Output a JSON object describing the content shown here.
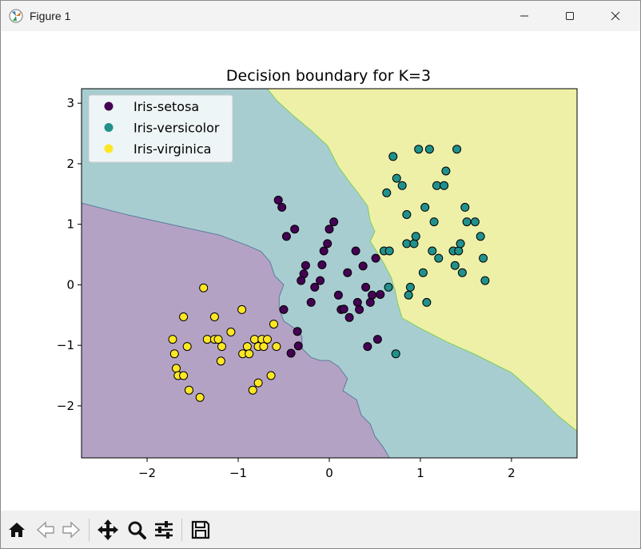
{
  "window": {
    "title": "Figure 1"
  },
  "toolbar": {
    "buttons": [
      "home-icon",
      "back-icon",
      "forward-icon",
      "pan-icon",
      "zoom-icon",
      "configure-subplots-icon",
      "save-icon"
    ]
  },
  "chart_data": {
    "type": "scatter",
    "title": "Decision boundary for K=3",
    "xlabel": "",
    "ylabel": "",
    "xlim": [
      -2.72,
      2.72
    ],
    "ylim": [
      -2.86,
      3.24
    ],
    "xticks": [
      -2,
      -1,
      0,
      1,
      2
    ],
    "xtick_labels": [
      "−2",
      "−1",
      "0",
      "1",
      "2"
    ],
    "yticks": [
      -2,
      -1,
      0,
      1,
      2,
      3
    ],
    "ytick_labels": [
      "−2",
      "−1",
      "0",
      "1",
      "2",
      "3"
    ],
    "grid": false,
    "legend_position": "top-left",
    "background_regions": [
      {
        "class": "Iris-setosa",
        "color": "#b4a2c4",
        "boundary": [
          [
            -2.72,
            1.35
          ],
          [
            -2.2,
            1.15
          ],
          [
            -1.6,
            0.95
          ],
          [
            -1.2,
            0.82
          ],
          [
            -0.9,
            0.65
          ],
          [
            -0.75,
            0.55
          ],
          [
            -0.65,
            0.38
          ],
          [
            -0.6,
            0.15
          ],
          [
            -0.5,
            0.0
          ],
          [
            -0.55,
            -0.2
          ],
          [
            -0.55,
            -0.4
          ],
          [
            -0.5,
            -0.6
          ],
          [
            -0.4,
            -0.7
          ],
          [
            -0.3,
            -0.85
          ],
          [
            -0.3,
            -1.05
          ],
          [
            -0.2,
            -1.2
          ],
          [
            -0.1,
            -1.25
          ],
          [
            0.0,
            -1.25
          ],
          [
            0.1,
            -1.35
          ],
          [
            0.2,
            -1.55
          ],
          [
            0.15,
            -1.75
          ],
          [
            0.3,
            -1.9
          ],
          [
            0.35,
            -2.15
          ],
          [
            0.45,
            -2.3
          ],
          [
            0.5,
            -2.5
          ],
          [
            0.6,
            -2.7
          ],
          [
            0.66,
            -2.86
          ],
          [
            -2.72,
            -2.86
          ]
        ]
      },
      {
        "class": "Iris-virginica",
        "color": "#eff0a8",
        "boundary": [
          [
            -0.68,
            3.24
          ],
          [
            -0.58,
            3.05
          ],
          [
            -0.4,
            2.8
          ],
          [
            -0.2,
            2.55
          ],
          [
            -0.02,
            2.3
          ],
          [
            0.1,
            1.95
          ],
          [
            0.22,
            1.7
          ],
          [
            0.3,
            1.55
          ],
          [
            0.42,
            1.3
          ],
          [
            0.45,
            1.05
          ],
          [
            0.5,
            0.88
          ],
          [
            0.45,
            0.72
          ],
          [
            0.52,
            0.55
          ],
          [
            0.6,
            0.35
          ],
          [
            0.68,
            0.12
          ],
          [
            0.72,
            -0.08
          ],
          [
            0.75,
            -0.3
          ],
          [
            0.8,
            -0.55
          ],
          [
            1.0,
            -0.72
          ],
          [
            1.3,
            -0.95
          ],
          [
            1.6,
            -1.15
          ],
          [
            2.0,
            -1.45
          ],
          [
            2.3,
            -1.85
          ],
          [
            2.5,
            -2.15
          ],
          [
            2.72,
            -2.42
          ],
          [
            2.72,
            3.24
          ]
        ]
      }
    ],
    "background_default": {
      "class": "Iris-versicolor",
      "color": "#a8cdd1"
    },
    "series": [
      {
        "name": "Iris-setosa",
        "color": "#440154",
        "points": [
          [
            -0.56,
            1.4
          ],
          [
            -0.52,
            1.28
          ],
          [
            -0.47,
            0.8
          ],
          [
            -0.38,
            0.92
          ],
          [
            -0.26,
            0.32
          ],
          [
            -0.28,
            0.18
          ],
          [
            -0.31,
            0.07
          ],
          [
            -0.16,
            -0.04
          ],
          [
            -0.2,
            -0.29
          ],
          [
            -0.1,
            0.07
          ],
          [
            -0.08,
            0.33
          ],
          [
            -0.06,
            0.56
          ],
          [
            -0.02,
            0.68
          ],
          [
            0.0,
            0.92
          ],
          [
            0.05,
            1.04
          ],
          [
            0.1,
            -0.17
          ],
          [
            0.13,
            -0.41
          ],
          [
            0.16,
            -0.4
          ],
          [
            0.2,
            0.2
          ],
          [
            0.22,
            -0.54
          ],
          [
            0.29,
            0.56
          ],
          [
            0.31,
            -0.29
          ],
          [
            0.33,
            -0.41
          ],
          [
            0.37,
            0.31
          ],
          [
            0.4,
            -0.04
          ],
          [
            0.42,
            -1.02
          ],
          [
            0.45,
            -0.29
          ],
          [
            0.47,
            -0.17
          ],
          [
            0.51,
            0.44
          ],
          [
            0.53,
            -0.9
          ],
          [
            0.56,
            -0.16
          ],
          [
            -0.5,
            -0.41
          ],
          [
            -0.35,
            -0.77
          ],
          [
            -0.34,
            -1.01
          ],
          [
            -0.42,
            -1.13
          ]
        ]
      },
      {
        "class_note": "",
        "name": "Iris-versicolor",
        "color": "#21918c",
        "points": [
          [
            0.63,
            1.52
          ],
          [
            0.65,
            -0.04
          ],
          [
            0.6,
            0.56
          ],
          [
            0.66,
            0.56
          ],
          [
            0.7,
            2.12
          ],
          [
            0.74,
            1.76
          ],
          [
            0.73,
            -1.14
          ],
          [
            0.8,
            1.64
          ],
          [
            0.85,
            1.16
          ],
          [
            0.85,
            0.68
          ],
          [
            0.87,
            -0.17
          ],
          [
            0.89,
            -0.04
          ],
          [
            0.93,
            0.68
          ],
          [
            0.95,
            0.8
          ],
          [
            0.98,
            2.24
          ],
          [
            1.03,
            0.2
          ],
          [
            1.05,
            1.28
          ],
          [
            1.07,
            -0.29
          ],
          [
            1.1,
            2.24
          ],
          [
            1.13,
            0.56
          ],
          [
            1.15,
            1.04
          ],
          [
            1.18,
            1.64
          ],
          [
            1.2,
            0.44
          ],
          [
            1.26,
            1.64
          ],
          [
            1.28,
            1.88
          ],
          [
            1.36,
            0.56
          ],
          [
            1.38,
            0.32
          ],
          [
            1.4,
            2.24
          ],
          [
            1.42,
            0.56
          ],
          [
            1.44,
            0.68
          ],
          [
            1.46,
            0.2
          ],
          [
            1.49,
            1.28
          ],
          [
            1.51,
            1.04
          ],
          [
            1.6,
            1.04
          ],
          [
            1.66,
            0.8
          ],
          [
            1.69,
            0.44
          ],
          [
            1.71,
            0.07
          ]
        ]
      },
      {
        "name": "Iris-virginica",
        "color": "#fde725",
        "points": [
          [
            -1.72,
            -0.9
          ],
          [
            -1.7,
            -1.14
          ],
          [
            -1.68,
            -1.38
          ],
          [
            -1.66,
            -1.5
          ],
          [
            -1.6,
            -1.5
          ],
          [
            -1.6,
            -0.53
          ],
          [
            -1.56,
            -1.02
          ],
          [
            -1.54,
            -1.74
          ],
          [
            -1.42,
            -1.86
          ],
          [
            -1.38,
            -0.05
          ],
          [
            -1.34,
            -0.9
          ],
          [
            -1.26,
            -0.53
          ],
          [
            -1.26,
            -0.9
          ],
          [
            -1.22,
            -0.9
          ],
          [
            -1.19,
            -1.26
          ],
          [
            -1.18,
            -1.02
          ],
          [
            -1.08,
            -0.78
          ],
          [
            -0.96,
            -0.41
          ],
          [
            -0.95,
            -1.14
          ],
          [
            -0.9,
            -1.02
          ],
          [
            -0.88,
            -1.14
          ],
          [
            -0.84,
            -1.74
          ],
          [
            -0.82,
            -0.9
          ],
          [
            -0.78,
            -1.62
          ],
          [
            -0.78,
            -1.02
          ],
          [
            -0.74,
            -0.9
          ],
          [
            -0.72,
            -1.02
          ],
          [
            -0.68,
            -0.9
          ],
          [
            -0.64,
            -1.5
          ],
          [
            -0.61,
            -0.65
          ],
          [
            -0.58,
            -1.02
          ]
        ]
      }
    ]
  }
}
